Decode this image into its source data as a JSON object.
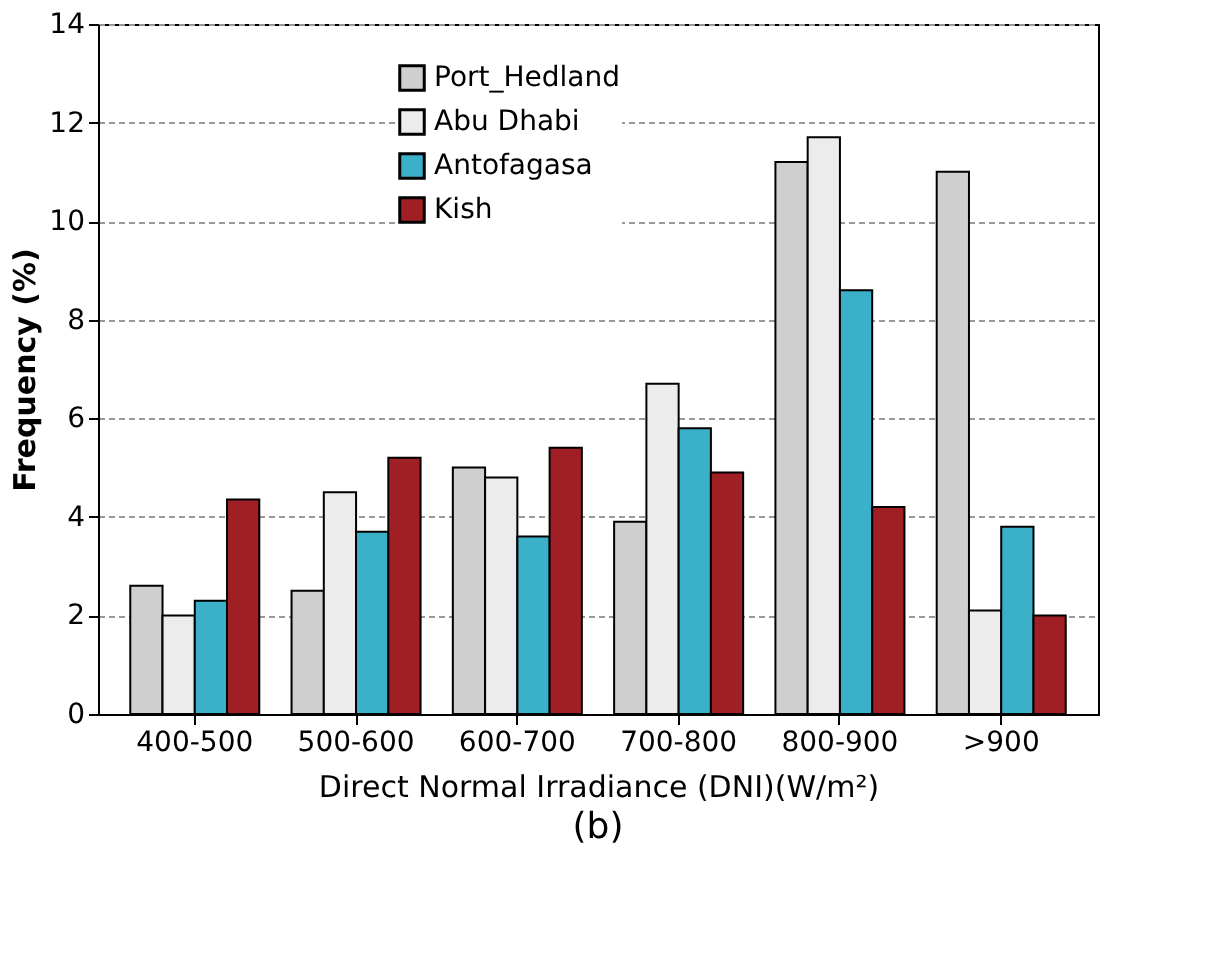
{
  "chart_data": {
    "type": "bar",
    "xlabel": "Direct Normal Irradiance (DNI)(W/m²)",
    "ylabel": "Frequency (%)",
    "categories": [
      "400-500",
      "500-600",
      "600-700",
      "700-800",
      "800-900",
      ">900"
    ],
    "series": [
      {
        "name": "Port_Hedland",
        "color": "#cfcfcf",
        "values": [
          2.6,
          2.5,
          5.0,
          3.9,
          11.2,
          11.0
        ]
      },
      {
        "name": "Abu Dhabi",
        "color": "#ececec",
        "values": [
          2.0,
          4.5,
          4.8,
          6.7,
          11.7,
          2.1
        ]
      },
      {
        "name": "Antofagasa",
        "color": "#3bb0c9",
        "values": [
          2.3,
          3.7,
          3.6,
          5.8,
          8.6,
          3.8
        ]
      },
      {
        "name": "Kish",
        "color": "#a01f24",
        "values": [
          4.35,
          5.2,
          5.4,
          4.9,
          4.2,
          2.0
        ]
      }
    ],
    "ylim": [
      0,
      14
    ],
    "yticks": [
      0,
      2,
      4,
      6,
      8,
      10,
      12,
      14
    ],
    "grid": "y",
    "legend": "top left",
    "annotations": [
      "(b)"
    ]
  }
}
